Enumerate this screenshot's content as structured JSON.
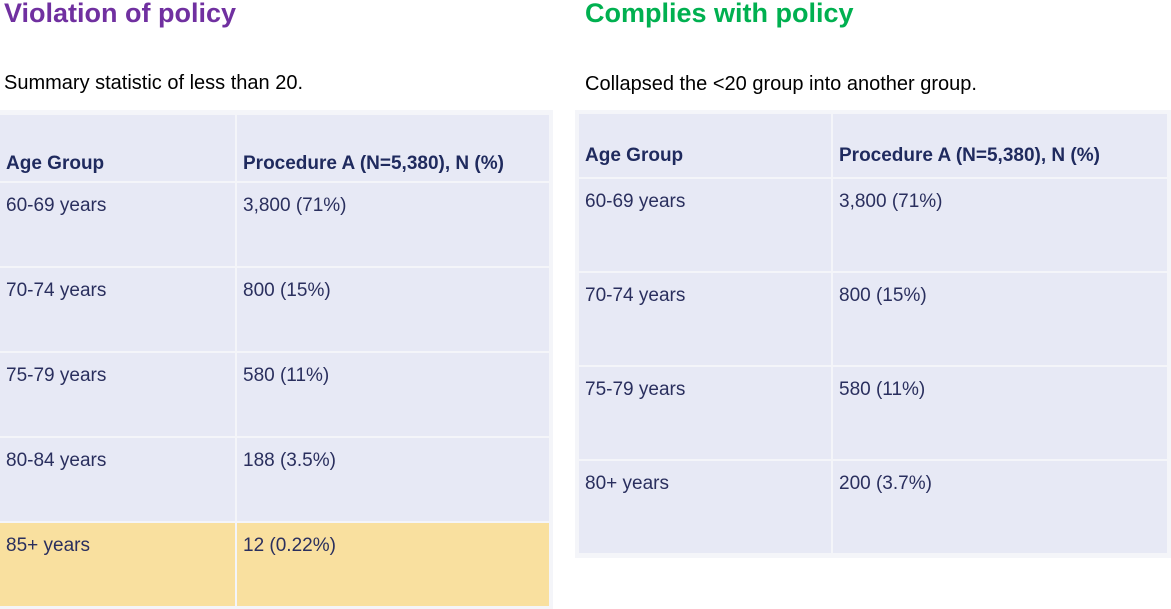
{
  "left": {
    "heading": "Violation of policy",
    "heading_color": "#7030a0",
    "subtitle": "Summary statistic of less than 20.",
    "table": {
      "headers": [
        "Age Group",
        "Procedure A (N=5,380), N (%)"
      ],
      "rows": [
        [
          "60-69 years",
          "3,800 (71%)"
        ],
        [
          "70-74 years",
          "800 (15%)"
        ],
        [
          "75-79 years",
          "580 (11%)"
        ],
        [
          "80-84 years",
          "188 (3.5%)"
        ],
        [
          "85+ years",
          "12 (0.22%)"
        ]
      ],
      "highlight_color": "#f9e09f"
    }
  },
  "right": {
    "heading": "Complies with policy",
    "heading_color": "#00b050",
    "subtitle": "Collapsed the <20 group into another group.",
    "table": {
      "headers": [
        "Age Group",
        "Procedure A (N=5,380), N (%)"
      ],
      "rows": [
        [
          "60-69 years",
          "3,800 (71%)"
        ],
        [
          "70-74 years",
          "800 (15%)"
        ],
        [
          "75-79 years",
          "580 (11%)"
        ],
        [
          "80+ years",
          "200 (3.7%)"
        ]
      ]
    }
  },
  "colors": {
    "cell_background": "#e7e9f5",
    "header_text": "#1f2a5e",
    "body_text": "#2a2f5e"
  }
}
